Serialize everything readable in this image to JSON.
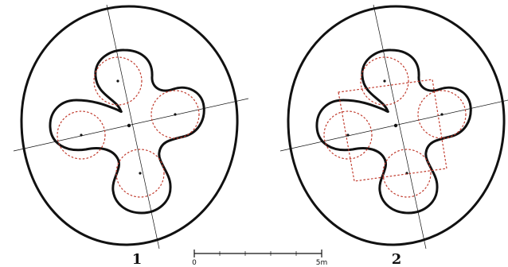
{
  "figures": [
    {
      "label": "1",
      "construction": "circles"
    },
    {
      "label": "2",
      "construction": "circles-and-square"
    }
  ],
  "scale_bar": {
    "start_label": "0",
    "end_label": "5m",
    "divisions": 5
  },
  "colors": {
    "outline": "#111111",
    "construction": "#c0392b"
  }
}
